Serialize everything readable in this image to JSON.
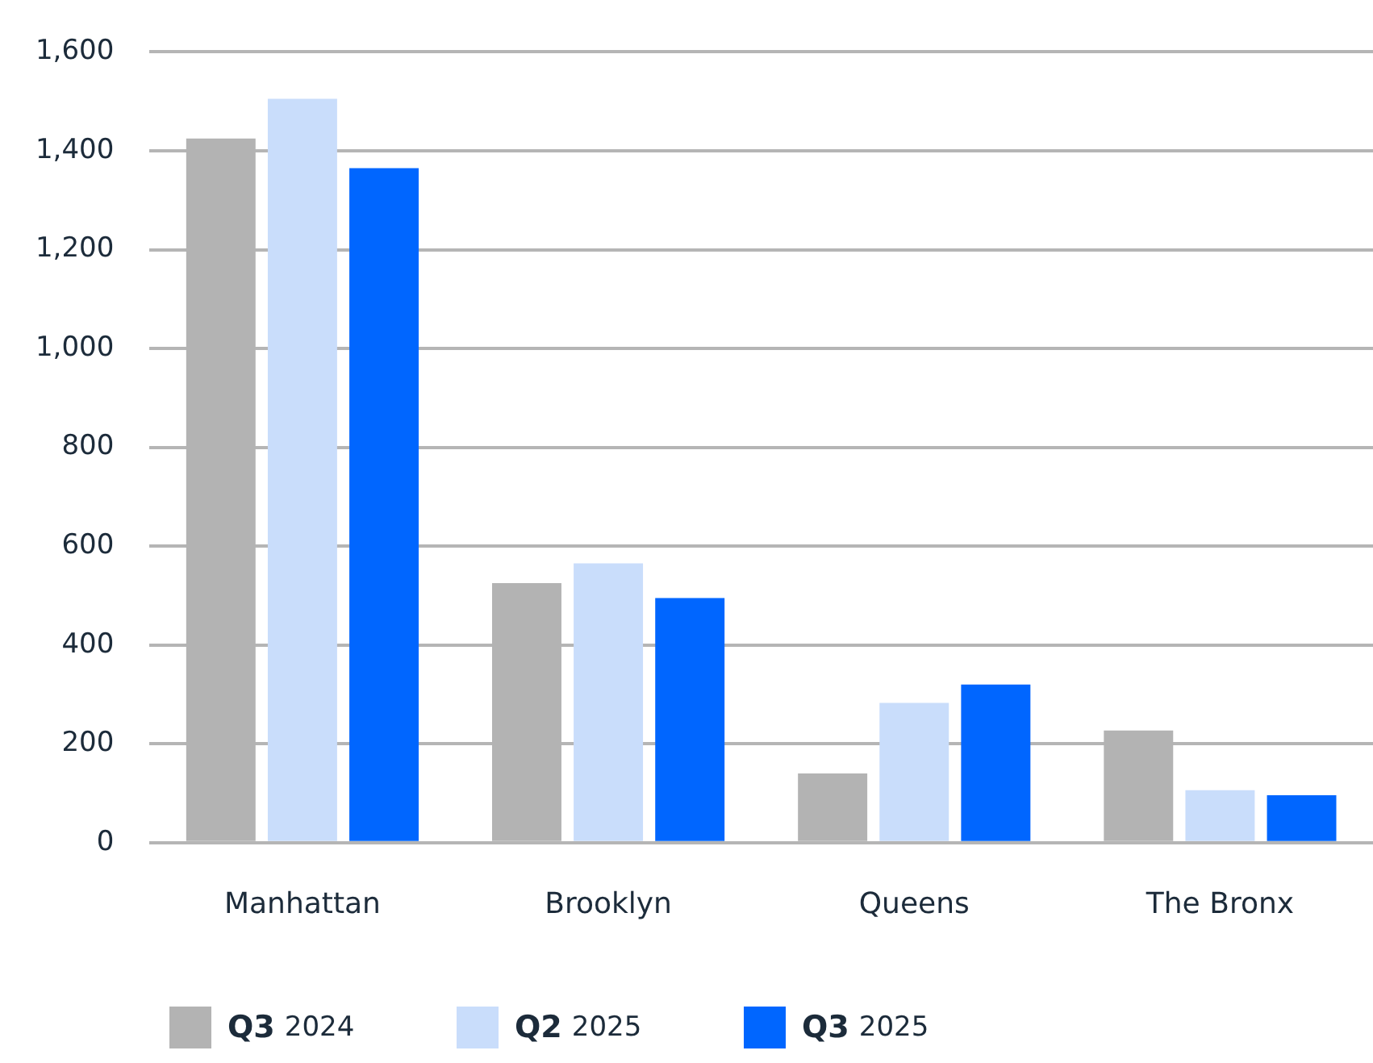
{
  "chart_data": {
    "type": "bar",
    "categories": [
      "Manhattan",
      "Brooklyn",
      "Queens",
      "The Bronx"
    ],
    "series": [
      {
        "name": "Q3 2024",
        "color": "#b3b3b3",
        "values": [
          1425,
          525,
          140,
          227
        ]
      },
      {
        "name": "Q2 2025",
        "color": "#c9ddfb",
        "values": [
          1505,
          565,
          283,
          106
        ]
      },
      {
        "name": "Q3 2025",
        "color": "#0066ff",
        "values": [
          1365,
          495,
          320,
          96
        ]
      }
    ],
    "ylim": [
      0,
      1600
    ],
    "yticks": [
      0,
      200,
      400,
      600,
      800,
      {
        "value": 1000,
        "label": "1,000"
      },
      {
        "value": 1200,
        "label": "1,200"
      },
      {
        "value": 1400,
        "label": "1,400"
      },
      {
        "value": 1600,
        "label": "1,600"
      }
    ],
    "grid": "y",
    "legend": "bottom"
  }
}
